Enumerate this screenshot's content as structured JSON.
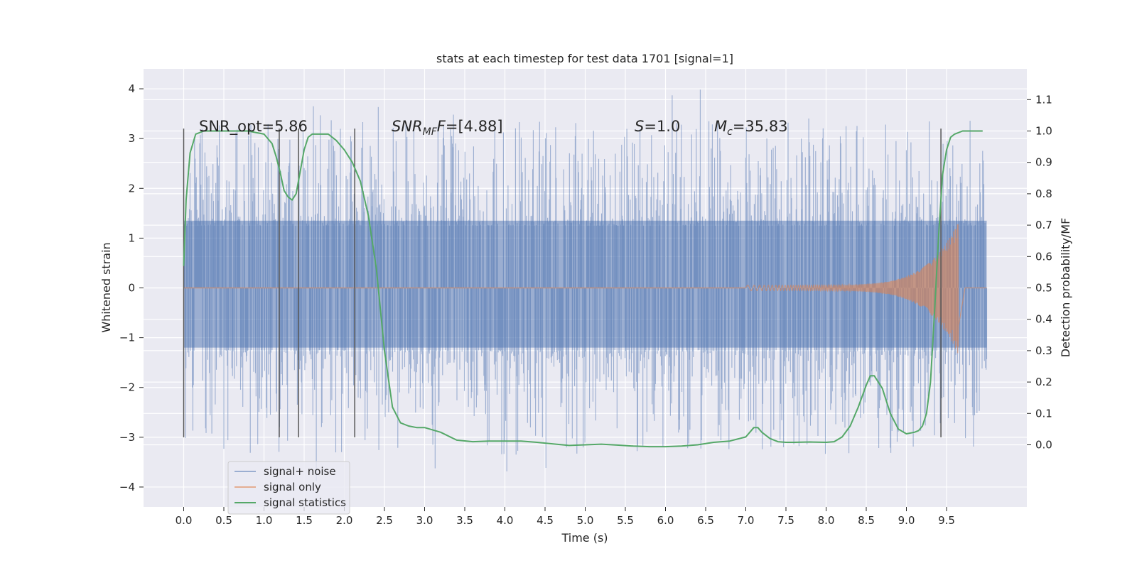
{
  "chart_data": {
    "type": "line",
    "title": "stats at each timestep for test data 1701 [signal=1]",
    "xlabel": "Time (s)",
    "ylabel": "Whitened strain",
    "y2label": "Detection probability/MF",
    "xlim": [
      -0.5,
      10.5
    ],
    "ylim": [
      -4.4,
      4.4
    ],
    "y2lim": [
      -0.198,
      1.198
    ],
    "x_ticks": [
      "0.0",
      "0.5",
      "1.0",
      "1.5",
      "2.0",
      "2.5",
      "3.0",
      "3.5",
      "4.0",
      "4.5",
      "5.0",
      "5.5",
      "6.0",
      "6.5",
      "7.0",
      "7.5",
      "8.0",
      "8.5",
      "9.0",
      "9.5"
    ],
    "y_ticks": [
      "−4",
      "−3",
      "−2",
      "−1",
      "0",
      "1",
      "2",
      "3",
      "4"
    ],
    "y2_ticks": [
      "0.0",
      "0.1",
      "0.2",
      "0.3",
      "0.4",
      "0.5",
      "0.6",
      "0.7",
      "0.8",
      "0.9",
      "1.0",
      "1.1"
    ],
    "grid": true,
    "legend_position": "lower-left",
    "colors": {
      "noise": "#4c72b0",
      "signal": "#dd8452",
      "stats": "#55a868",
      "marker": "#555555",
      "background": "#eaeaf2"
    },
    "annotations": {
      "snr_opt": "SNR_opt=5.86",
      "snr_mf_main": "SNR",
      "snr_mf_sub": "MF",
      "snr_mf_value": "=[4.88]",
      "s_label": "S",
      "s_value": "=1.0",
      "mc_label": "M",
      "mc_sub": "c",
      "mc_value": "=35.83"
    },
    "vertical_markers": {
      "x": [
        0.0,
        1.19,
        1.43,
        2.13,
        9.43
      ],
      "y_range": [
        -3.0,
        3.2
      ]
    },
    "series": [
      {
        "name": "signal+ noise",
        "noise_band": {
          "start": 0.0,
          "end": 10.0,
          "core_low": -1.2,
          "core_high": 1.35,
          "min": -3.9,
          "max": 4.05
        }
      },
      {
        "name": "signal only",
        "chirp": {
          "start": 7.0,
          "end": 9.65,
          "peak": 1.35,
          "trough": -1.45
        }
      },
      {
        "name": "signal statistics",
        "x": [
          0.0,
          0.03,
          0.08,
          0.15,
          0.25,
          0.4,
          0.6,
          0.8,
          1.0,
          1.1,
          1.15,
          1.2,
          1.25,
          1.3,
          1.35,
          1.4,
          1.45,
          1.5,
          1.55,
          1.6,
          1.65,
          1.7,
          1.8,
          1.9,
          2.0,
          2.1,
          2.2,
          2.3,
          2.4,
          2.5,
          2.6,
          2.7,
          2.8,
          2.9,
          3.0,
          3.2,
          3.4,
          3.6,
          3.8,
          4.0,
          4.2,
          4.4,
          4.6,
          4.8,
          5.0,
          5.2,
          5.4,
          5.6,
          5.8,
          6.0,
          6.2,
          6.4,
          6.6,
          6.8,
          7.0,
          7.1,
          7.15,
          7.2,
          7.3,
          7.4,
          7.5,
          7.6,
          7.8,
          8.0,
          8.1,
          8.2,
          8.3,
          8.4,
          8.5,
          8.55,
          8.6,
          8.7,
          8.8,
          8.9,
          9.0,
          9.1,
          9.15,
          9.2,
          9.25,
          9.3,
          9.35,
          9.4,
          9.45,
          9.5,
          9.55,
          9.6,
          9.7,
          9.8,
          9.9,
          9.95
        ],
        "y": [
          0.57,
          0.78,
          0.93,
          0.99,
          1.0,
          1.0,
          1.0,
          1.0,
          0.99,
          0.96,
          0.92,
          0.87,
          0.81,
          0.79,
          0.78,
          0.8,
          0.87,
          0.94,
          0.98,
          0.99,
          0.99,
          0.99,
          0.99,
          0.97,
          0.94,
          0.9,
          0.84,
          0.73,
          0.56,
          0.3,
          0.12,
          0.07,
          0.06,
          0.055,
          0.055,
          0.04,
          0.015,
          0.01,
          0.012,
          0.012,
          0.012,
          0.008,
          0.003,
          -0.002,
          0.0,
          0.002,
          -0.001,
          -0.004,
          -0.006,
          -0.006,
          -0.004,
          0.0,
          0.008,
          0.012,
          0.025,
          0.055,
          0.055,
          0.04,
          0.02,
          0.01,
          0.008,
          0.008,
          0.009,
          0.008,
          0.01,
          0.025,
          0.06,
          0.12,
          0.19,
          0.22,
          0.22,
          0.18,
          0.1,
          0.05,
          0.035,
          0.04,
          0.045,
          0.06,
          0.1,
          0.2,
          0.42,
          0.66,
          0.86,
          0.94,
          0.98,
          0.99,
          1.0,
          1.0,
          1.0,
          1.0
        ]
      }
    ]
  }
}
